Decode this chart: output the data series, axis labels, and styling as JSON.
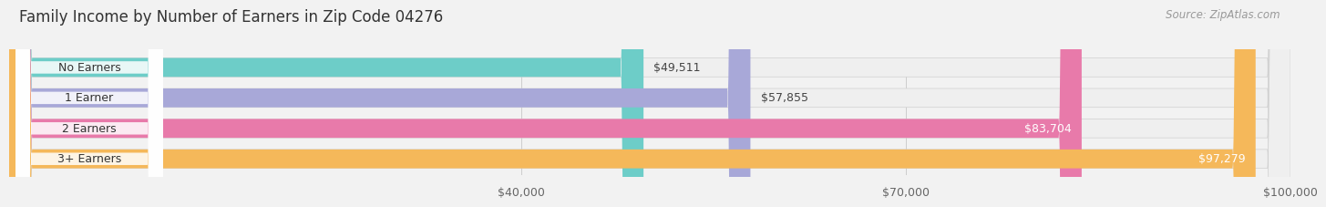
{
  "title": "Family Income by Number of Earners in Zip Code 04276",
  "source": "Source: ZipAtlas.com",
  "categories": [
    "No Earners",
    "1 Earner",
    "2 Earners",
    "3+ Earners"
  ],
  "values": [
    49511,
    57855,
    83704,
    97279
  ],
  "bar_colors": [
    "#6dcdc8",
    "#a8a8d8",
    "#e87aaa",
    "#f5b85a"
  ],
  "bar_labels": [
    "$49,511",
    "$57,855",
    "$83,704",
    "$97,279"
  ],
  "xmax": 100000,
  "xticks": [
    40000,
    70000,
    100000
  ],
  "xtick_labels": [
    "$40,000",
    "$70,000",
    "$100,000"
  ],
  "background_color": "#f2f2f2",
  "title_fontsize": 12,
  "label_fontsize": 9,
  "value_fontsize": 9,
  "source_fontsize": 8.5
}
